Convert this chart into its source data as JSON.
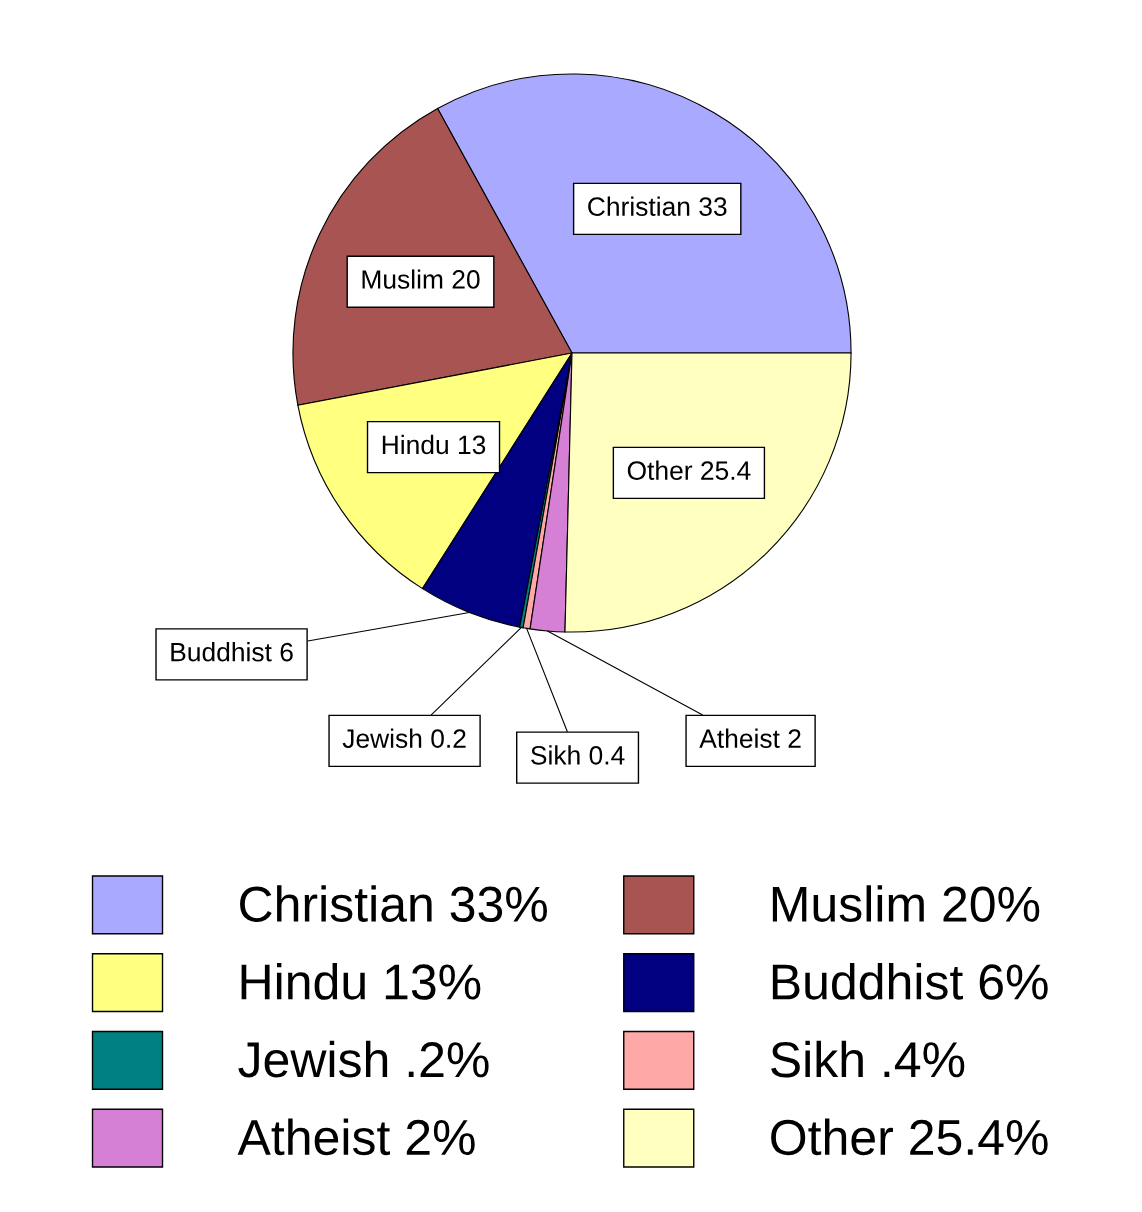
{
  "chart_data": {
    "type": "pie",
    "categories": [
      "Christian 33%",
      "Muslim 20%",
      "Hindu 13%",
      "Buddhist 6%",
      "Jewish .2%",
      "Sikh .4%",
      "Atheist 2%",
      "Other 25.4%"
    ],
    "values": [
      33,
      20,
      13,
      6,
      0.2,
      0.4,
      2,
      25.4
    ],
    "value_labels": [
      "Christian 33",
      "Muslim 20",
      "Hindu 13",
      "Buddhist 6",
      "Jewish 0.2",
      "Sikh 0.4",
      "Atheist 2",
      "Other 25.4"
    ],
    "colors": [
      "#a9a9ff",
      "#a85452",
      "#ffff80",
      "#000080",
      "#008080",
      "#ffa8a8",
      "#d580d5",
      "#ffffc0"
    ],
    "legend": "bottom"
  }
}
